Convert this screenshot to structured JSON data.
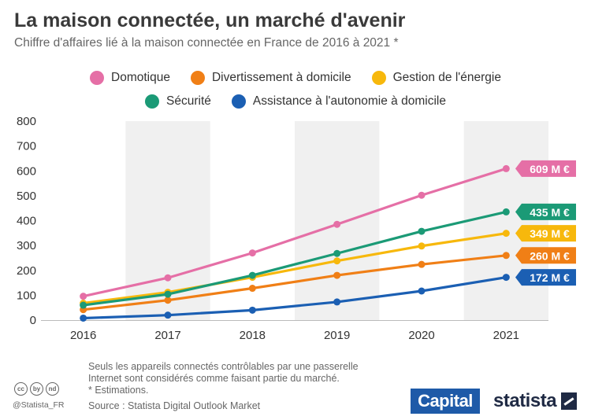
{
  "header": {
    "title": "La maison connectée, un marché d'avenir",
    "subtitle": "Chiffre d'affaires lié à la maison connectée en France de 2016 à 2021 *"
  },
  "chart_data": {
    "type": "line",
    "x": [
      "2016",
      "2017",
      "2018",
      "2019",
      "2020",
      "2021"
    ],
    "ylim": [
      0,
      800
    ],
    "yticks": [
      0,
      100,
      200,
      300,
      400,
      500,
      600,
      700,
      800
    ],
    "grid": false,
    "legend_position": "top",
    "series": [
      {
        "name": "Domotique",
        "color": "#e56fa6",
        "values": [
          96,
          170,
          270,
          385,
          502,
          609
        ],
        "end_label": "609 M €"
      },
      {
        "name": "Divertissement à domicile",
        "color": "#f07f16",
        "values": [
          42,
          80,
          128,
          180,
          224,
          260
        ],
        "end_label": "260 M €"
      },
      {
        "name": "Gestion de l'énergie",
        "color": "#f7b80c",
        "values": [
          68,
          112,
          172,
          238,
          298,
          349
        ],
        "end_label": "349 M €"
      },
      {
        "name": "Sécurité",
        "color": "#1b9a76",
        "values": [
          60,
          104,
          180,
          268,
          357,
          435
        ],
        "end_label": "435 M €"
      },
      {
        "name": "Assistance à l'autonomie à domicile",
        "color": "#1b5fb3",
        "values": [
          8,
          20,
          40,
          73,
          117,
          172
        ],
        "end_label": "172 M €"
      }
    ]
  },
  "footer": {
    "note_lines": [
      "Seuls les appareils connectés contrôlables par une passerelle",
      "Internet sont considérés comme faisant partie du marché.",
      "* Estimations."
    ],
    "source": "Source : Statista Digital Outlook Market",
    "handle": "@Statista_FR",
    "cc_icons": [
      "cc",
      "by",
      "nd"
    ],
    "capital_logo": "Capital",
    "statista_logo": "statista"
  }
}
